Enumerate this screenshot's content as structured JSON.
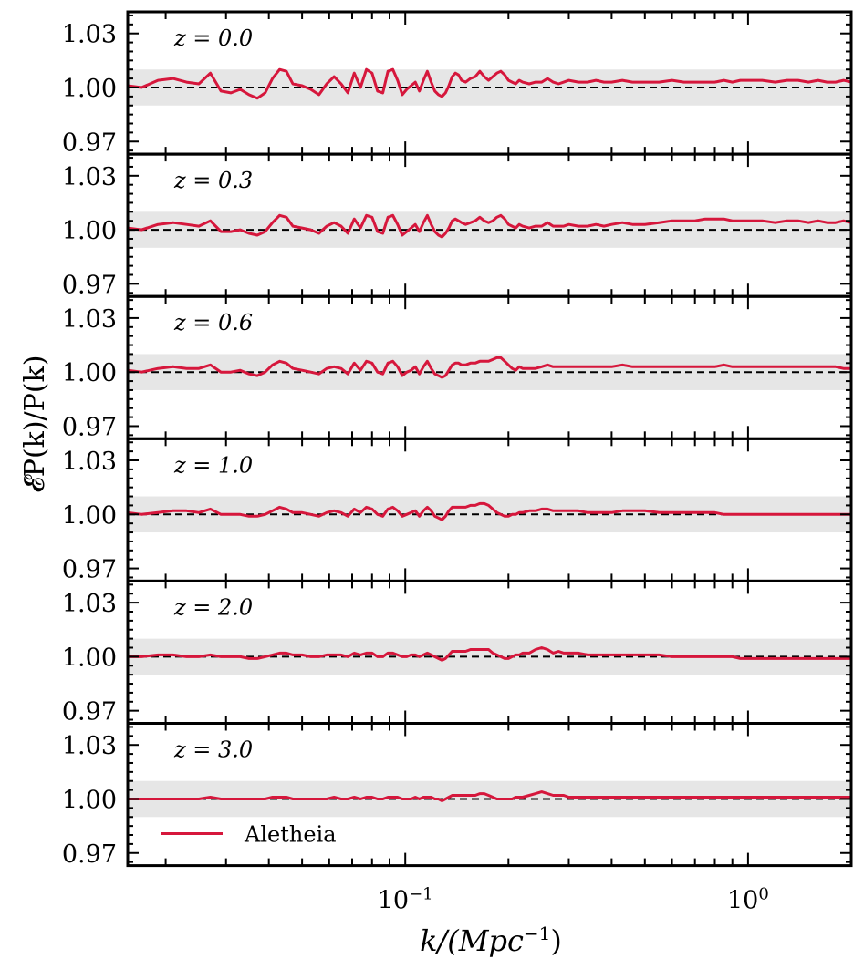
{
  "figure": {
    "ylabel": "𝓔P(k)/P(k)",
    "xlabel_base": "k/(Mpc",
    "xlabel_sup": "−1",
    "xlabel_close": ")"
  },
  "colors": {
    "series": "#d6173c",
    "band": "#e6e6e6",
    "reference": "#000000"
  },
  "legend": {
    "label": "Aletheia",
    "placement": "bottom-left of last panel"
  },
  "chart_data": {
    "type": "line",
    "x_scale": "log",
    "xlim": [
      0.0155,
      2.0
    ],
    "ylim": [
      0.963,
      1.042
    ],
    "yticks": [
      0.97,
      1.0,
      1.03
    ],
    "ytick_labels": [
      "0.97",
      "1.00",
      "1.03"
    ],
    "xtick_labels": [
      {
        "base": "10",
        "exp": "−1",
        "value": 0.1
      },
      {
        "base": "10",
        "exp": "0",
        "value": 1.0
      }
    ],
    "x": [
      0.0155,
      0.017,
      0.019,
      0.021,
      0.023,
      0.025,
      0.027,
      0.029,
      0.031,
      0.033,
      0.035,
      0.037,
      0.039,
      0.041,
      0.043,
      0.045,
      0.047,
      0.05,
      0.053,
      0.056,
      0.059,
      0.062,
      0.065,
      0.068,
      0.071,
      0.074,
      0.077,
      0.08,
      0.083,
      0.086,
      0.089,
      0.092,
      0.095,
      0.098,
      0.101,
      0.104,
      0.107,
      0.11,
      0.113,
      0.116,
      0.119,
      0.122,
      0.125,
      0.128,
      0.131,
      0.134,
      0.137,
      0.14,
      0.143,
      0.146,
      0.15,
      0.155,
      0.16,
      0.165,
      0.17,
      0.175,
      0.18,
      0.185,
      0.19,
      0.195,
      0.2,
      0.205,
      0.21,
      0.215,
      0.22,
      0.23,
      0.24,
      0.25,
      0.26,
      0.27,
      0.28,
      0.29,
      0.3,
      0.32,
      0.34,
      0.36,
      0.38,
      0.4,
      0.43,
      0.46,
      0.5,
      0.55,
      0.6,
      0.65,
      0.7,
      0.75,
      0.8,
      0.85,
      0.9,
      0.95,
      1.0,
      1.1,
      1.2,
      1.3,
      1.4,
      1.5,
      1.6,
      1.7,
      1.8,
      1.9,
      2.0
    ],
    "panels": [
      {
        "label": "z = 0.0",
        "band": [
          0.99,
          1.01
        ],
        "reference": 1.0
      },
      {
        "label": "z = 0.3",
        "band": [
          0.99,
          1.01
        ],
        "reference": 1.0
      },
      {
        "label": "z = 0.6",
        "band": [
          0.99,
          1.01
        ],
        "reference": 1.0
      },
      {
        "label": "z = 1.0",
        "band": [
          0.99,
          1.01
        ],
        "reference": 1.0
      },
      {
        "label": "z = 2.0",
        "band": [
          0.99,
          1.01
        ],
        "reference": 1.0
      },
      {
        "label": "z = 3.0",
        "band": [
          0.99,
          1.01
        ],
        "reference": 1.0
      }
    ],
    "series": [
      {
        "name": "Aletheia",
        "panel": 0,
        "values": [
          1.001,
          1.0,
          1.004,
          1.005,
          1.003,
          1.002,
          1.008,
          0.998,
          0.997,
          0.999,
          0.996,
          0.994,
          0.997,
          1.005,
          1.01,
          1.009,
          1.002,
          1.001,
          0.999,
          0.996,
          1.002,
          1.006,
          1.002,
          0.997,
          1.008,
          1.0,
          1.01,
          1.008,
          0.998,
          0.997,
          1.009,
          1.01,
          1.004,
          0.996,
          0.999,
          1.001,
          1.003,
          0.998,
          1.004,
          1.009,
          1.003,
          0.998,
          0.996,
          0.995,
          0.997,
          1.001,
          1.006,
          1.008,
          1.007,
          1.004,
          1.003,
          1.005,
          1.006,
          1.009,
          1.006,
          1.004,
          1.006,
          1.008,
          1.009,
          1.007,
          1.004,
          1.003,
          1.002,
          1.004,
          1.003,
          1.002,
          1.003,
          1.003,
          1.005,
          1.003,
          1.002,
          1.003,
          1.004,
          1.003,
          1.003,
          1.004,
          1.003,
          1.003,
          1.004,
          1.003,
          1.003,
          1.003,
          1.004,
          1.003,
          1.003,
          1.003,
          1.003,
          1.004,
          1.003,
          1.004,
          1.004,
          1.004,
          1.003,
          1.004,
          1.004,
          1.003,
          1.004,
          1.003,
          1.003,
          1.004,
          1.003
        ]
      },
      {
        "name": "Aletheia",
        "panel": 1,
        "values": [
          1.001,
          1.0,
          1.003,
          1.004,
          1.003,
          1.002,
          1.005,
          0.999,
          0.999,
          1.0,
          0.998,
          0.997,
          0.999,
          1.004,
          1.008,
          1.007,
          1.002,
          1.001,
          1.0,
          0.998,
          1.002,
          1.004,
          1.002,
          0.998,
          1.006,
          1.001,
          1.008,
          1.007,
          0.999,
          0.998,
          1.007,
          1.008,
          1.003,
          0.997,
          0.999,
          1.001,
          1.003,
          0.999,
          1.004,
          1.008,
          1.003,
          0.999,
          0.997,
          0.996,
          0.998,
          1.001,
          1.005,
          1.006,
          1.005,
          1.004,
          1.003,
          1.004,
          1.005,
          1.007,
          1.005,
          1.004,
          1.005,
          1.007,
          1.008,
          1.006,
          1.003,
          1.002,
          1.001,
          1.003,
          1.002,
          1.001,
          1.002,
          1.002,
          1.004,
          1.002,
          1.002,
          1.002,
          1.003,
          1.002,
          1.002,
          1.003,
          1.002,
          1.003,
          1.004,
          1.003,
          1.003,
          1.004,
          1.005,
          1.005,
          1.005,
          1.006,
          1.006,
          1.006,
          1.005,
          1.005,
          1.005,
          1.005,
          1.004,
          1.005,
          1.005,
          1.004,
          1.005,
          1.004,
          1.004,
          1.005,
          1.004
        ]
      },
      {
        "name": "Aletheia",
        "panel": 2,
        "values": [
          1.001,
          1.0,
          1.002,
          1.003,
          1.002,
          1.002,
          1.004,
          1.0,
          1.0,
          1.001,
          0.999,
          0.998,
          1.0,
          1.004,
          1.006,
          1.005,
          1.002,
          1.001,
          1.0,
          0.999,
          1.002,
          1.003,
          1.002,
          0.999,
          1.005,
          1.001,
          1.006,
          1.005,
          1.0,
          0.999,
          1.005,
          1.006,
          1.003,
          0.998,
          1.0,
          1.001,
          1.003,
          0.999,
          1.003,
          1.006,
          1.002,
          0.999,
          0.998,
          0.997,
          0.998,
          1.001,
          1.004,
          1.005,
          1.005,
          1.004,
          1.004,
          1.005,
          1.005,
          1.006,
          1.006,
          1.006,
          1.007,
          1.008,
          1.008,
          1.006,
          1.004,
          1.002,
          1.001,
          1.003,
          1.002,
          1.002,
          1.002,
          1.003,
          1.004,
          1.003,
          1.003,
          1.003,
          1.003,
          1.003,
          1.003,
          1.003,
          1.003,
          1.003,
          1.004,
          1.003,
          1.003,
          1.003,
          1.003,
          1.003,
          1.003,
          1.003,
          1.003,
          1.004,
          1.003,
          1.003,
          1.003,
          1.003,
          1.003,
          1.003,
          1.003,
          1.003,
          1.003,
          1.003,
          1.003,
          1.002,
          1.002
        ]
      },
      {
        "name": "Aletheia",
        "panel": 3,
        "values": [
          1.001,
          1.0,
          1.001,
          1.002,
          1.002,
          1.001,
          1.003,
          1.0,
          1.0,
          1.0,
          0.999,
          0.999,
          1.0,
          1.002,
          1.004,
          1.003,
          1.001,
          1.001,
          1.0,
          0.999,
          1.001,
          1.002,
          1.001,
          0.999,
          1.003,
          1.001,
          1.004,
          1.003,
          1.0,
          0.999,
          1.003,
          1.004,
          1.002,
          0.999,
          1.0,
          1.001,
          1.002,
          0.999,
          1.002,
          1.004,
          1.002,
          0.999,
          0.998,
          0.997,
          0.999,
          1.002,
          1.004,
          1.004,
          1.004,
          1.004,
          1.004,
          1.005,
          1.005,
          1.006,
          1.006,
          1.005,
          1.003,
          1.001,
          1.0,
          0.999,
          0.999,
          1.0,
          1.0,
          1.001,
          1.001,
          1.002,
          1.002,
          1.003,
          1.003,
          1.002,
          1.002,
          1.002,
          1.002,
          1.002,
          1.001,
          1.001,
          1.001,
          1.001,
          1.002,
          1.002,
          1.002,
          1.001,
          1.001,
          1.001,
          1.001,
          1.001,
          1.001,
          1.0,
          1.0,
          1.0,
          1.0,
          1.0,
          1.0,
          1.0,
          1.0,
          1.0,
          1.0,
          1.0,
          1.0,
          1.0,
          1.0
        ]
      },
      {
        "name": "Aletheia",
        "panel": 4,
        "values": [
          1.0,
          1.0,
          1.001,
          1.001,
          1.0,
          1.0,
          1.001,
          1.0,
          1.0,
          1.0,
          0.999,
          0.999,
          1.0,
          1.001,
          1.002,
          1.002,
          1.001,
          1.001,
          1.0,
          1.0,
          1.001,
          1.001,
          1.001,
          1.0,
          1.002,
          1.001,
          1.002,
          1.002,
          1.0,
          1.0,
          1.002,
          1.002,
          1.001,
          1.0,
          1.0,
          1.001,
          1.001,
          1.0,
          1.001,
          1.002,
          1.001,
          1.0,
          0.999,
          0.998,
          0.999,
          1.001,
          1.003,
          1.003,
          1.003,
          1.003,
          1.003,
          1.004,
          1.004,
          1.004,
          1.004,
          1.004,
          1.002,
          1.001,
          1.0,
          0.999,
          0.999,
          1.0,
          1.001,
          1.001,
          1.002,
          1.002,
          1.004,
          1.005,
          1.004,
          1.002,
          1.003,
          1.002,
          1.002,
          1.002,
          1.001,
          1.001,
          1.001,
          1.001,
          1.001,
          1.001,
          1.001,
          1.001,
          1.0,
          1.0,
          1.0,
          1.0,
          1.0,
          1.0,
          1.0,
          0.999,
          0.999,
          0.999,
          0.999,
          0.999,
          0.999,
          0.999,
          0.999,
          0.999,
          0.999,
          0.999,
          0.999
        ]
      },
      {
        "name": "Aletheia",
        "panel": 5,
        "values": [
          1.0,
          1.0,
          1.0,
          1.0,
          1.0,
          1.0,
          1.001,
          1.0,
          1.0,
          1.0,
          1.0,
          1.0,
          1.0,
          1.001,
          1.001,
          1.001,
          1.0,
          1.0,
          1.0,
          1.0,
          1.0,
          1.001,
          1.0,
          1.0,
          1.001,
          1.0,
          1.001,
          1.001,
          1.0,
          1.0,
          1.001,
          1.001,
          1.001,
          1.0,
          1.0,
          1.0,
          1.001,
          1.0,
          1.001,
          1.001,
          1.001,
          1.0,
          1.0,
          0.999,
          1.0,
          1.001,
          1.002,
          1.002,
          1.002,
          1.002,
          1.002,
          1.002,
          1.002,
          1.003,
          1.003,
          1.002,
          1.001,
          1.0,
          1.0,
          1.0,
          1.0,
          1.0,
          1.001,
          1.001,
          1.001,
          1.002,
          1.003,
          1.004,
          1.003,
          1.002,
          1.002,
          1.002,
          1.001,
          1.001,
          1.001,
          1.001,
          1.001,
          1.001,
          1.001,
          1.001,
          1.001,
          1.001,
          1.001,
          1.001,
          1.001,
          1.001,
          1.001,
          1.001,
          1.001,
          1.001,
          1.001,
          1.001,
          1.001,
          1.001,
          1.001,
          1.001,
          1.001,
          1.001,
          1.001,
          1.001,
          1.001
        ]
      }
    ]
  }
}
